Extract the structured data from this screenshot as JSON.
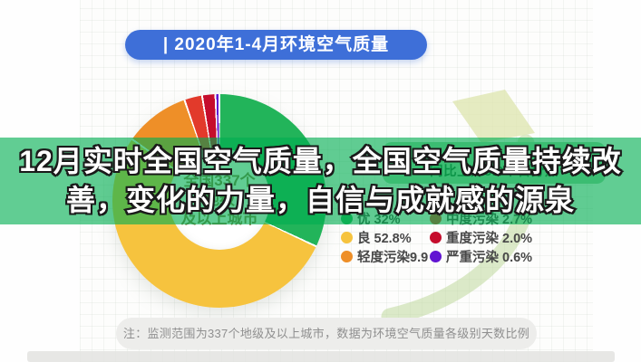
{
  "header": {
    "title": "| 2020年1-4月环境空气质量"
  },
  "headline": {
    "line1": "12月实时全国空气质量，全国空气质量持续改",
    "line2": "善，变化的力量，自信与成就感的源泉"
  },
  "donut_center": {
    "line1": "全国337个",
    "line2": "地级",
    "line3": "及以上城市"
  },
  "stat_box": {
    "line": "同比上升5.0个百分点"
  },
  "legend": {
    "items": [
      {
        "text": "优 32%",
        "color": "#22b45a"
      },
      {
        "text": "中度污染 2.7%",
        "color": "#e23a2b"
      },
      {
        "text": "良 52.8%",
        "color": "#f6c33e"
      },
      {
        "text": "重度污染 2.0%",
        "color": "#c50d2c"
      },
      {
        "text": "轻度污染9.9",
        "color": "#ee8f28"
      },
      {
        "text": "严重污染 0.6%",
        "color": "#6114d2"
      }
    ]
  },
  "note": {
    "text": "注：监测范围为337个地级及以上城市，数据为环境空气质量各级别天数比例"
  },
  "colors": {
    "header_blue": "#3e6fd8",
    "overlay_band": "rgba(0,175,80,0.62)",
    "deco_swoosh": "#bfd89c",
    "deco_arrowhead": "#dfe6b2"
  },
  "chart_data": {
    "type": "pie",
    "donut": true,
    "title": "2020年1-4月环境空气质量",
    "categories": [
      "优",
      "良",
      "轻度污染",
      "中度污染",
      "重度污染",
      "严重污染"
    ],
    "values": [
      32,
      52.8,
      9.9,
      2.7,
      2.0,
      0.6
    ],
    "unit": "%",
    "colors": [
      "#22b45a",
      "#f6c33e",
      "#ee8f28",
      "#e23a2b",
      "#c50d2c",
      "#6114d2"
    ],
    "start_angle_deg": 0,
    "direction": "clockwise",
    "center_label": "全国337个地级及以上城市",
    "annotation": "同比上升5.0个百分点",
    "legend_position": "right",
    "note": "注：监测范围为337个地级及以上城市，数据为环境空气质量各级别天数比例"
  }
}
